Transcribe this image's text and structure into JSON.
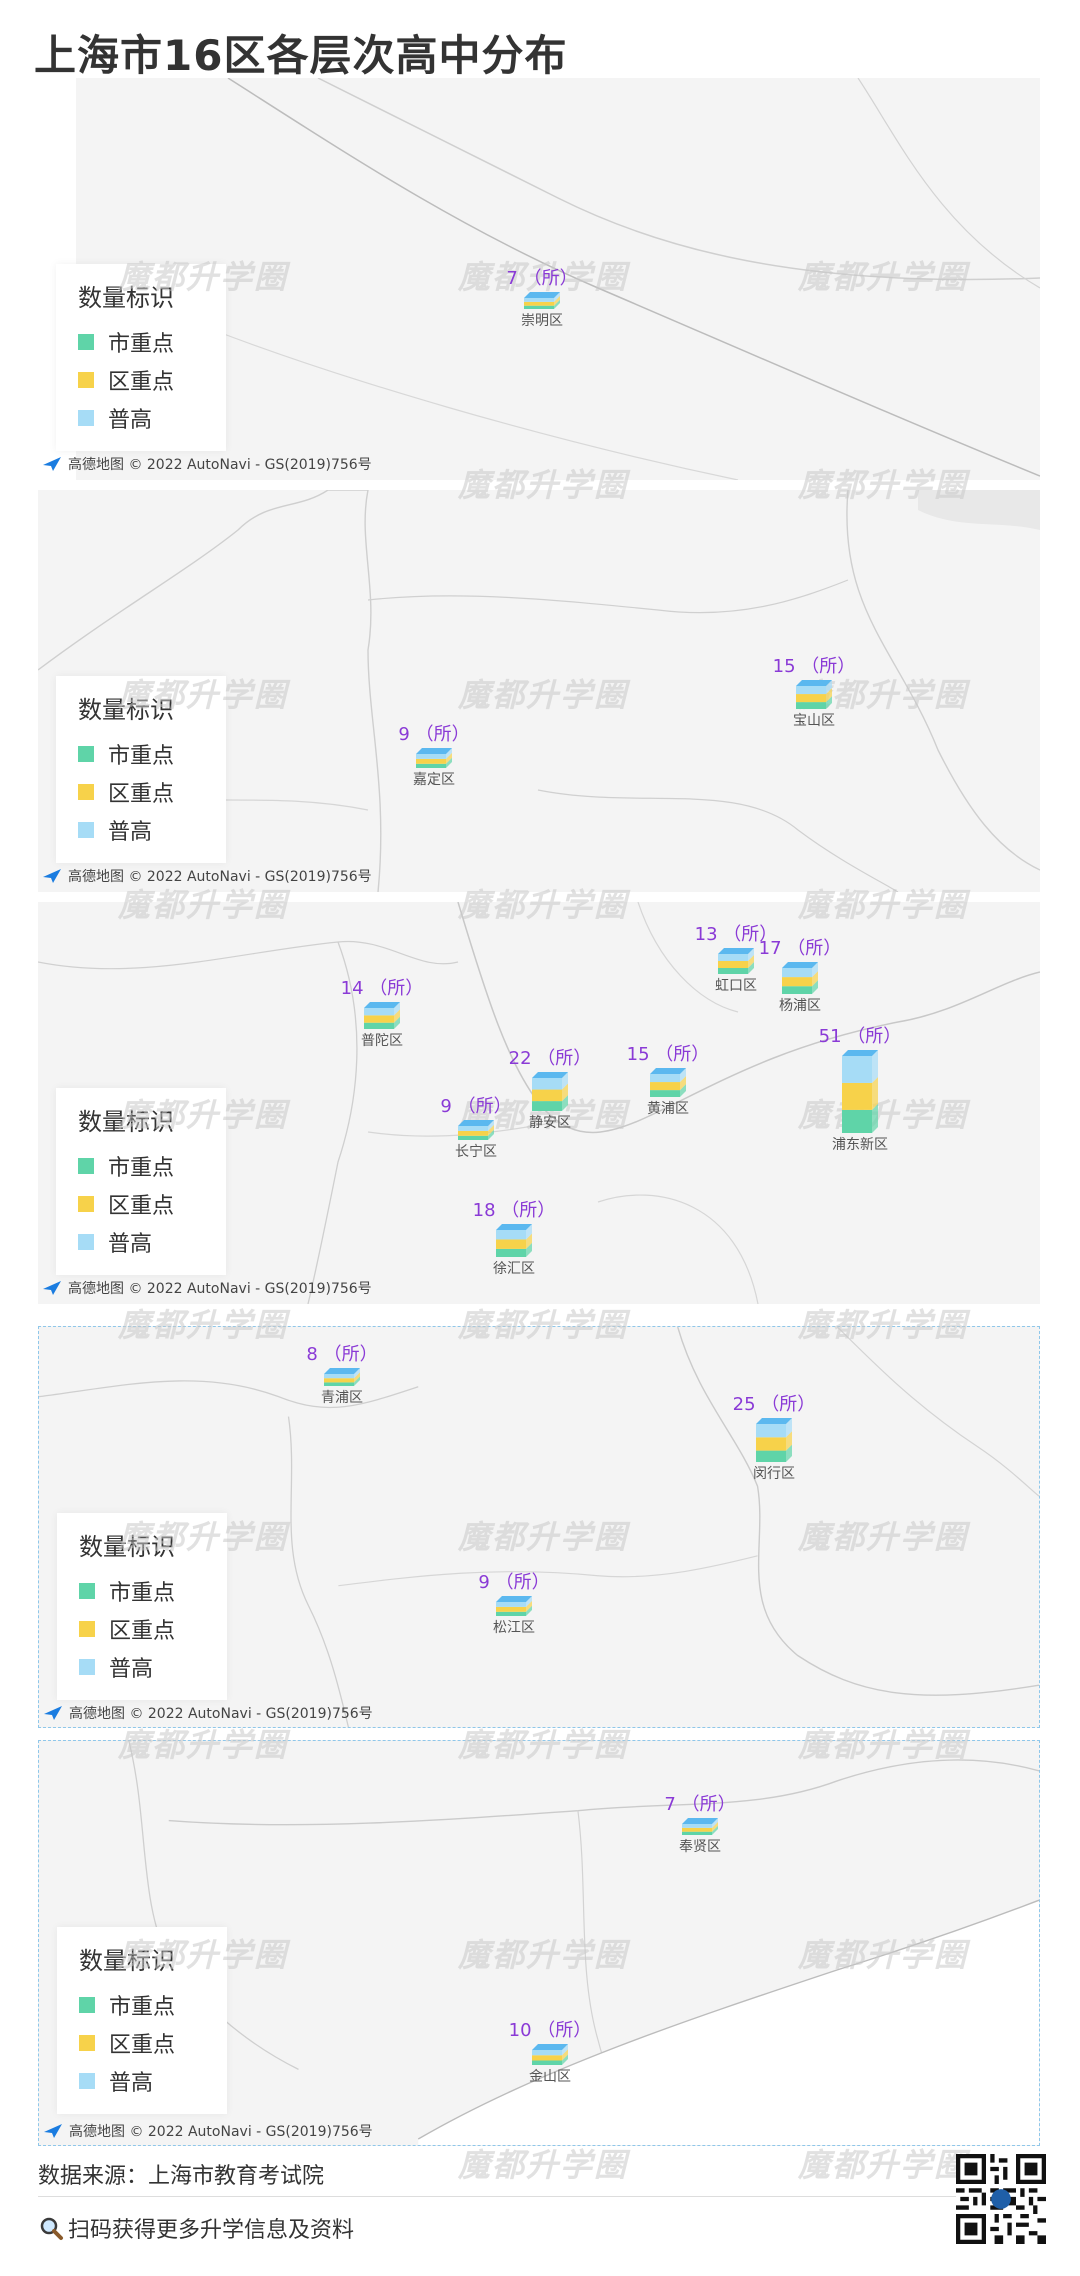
{
  "title": "上海市16区各层次高中分布",
  "legend": {
    "title": "数量标识",
    "items": [
      {
        "label": "市重点",
        "color": "#5fd4a8"
      },
      {
        "label": "区重点",
        "color": "#f7d24a"
      },
      {
        "label": "普高",
        "color": "#a6dcf6"
      }
    ]
  },
  "map_copyright": "© 2022 AutoNavi - GS(2019)756号",
  "map_brand": "高德地图",
  "watermark": "魔都升学圈",
  "count_unit": "（所）",
  "districts": [
    {
      "name": "崇明区",
      "count": 7
    },
    {
      "name": "宝山区",
      "count": 15
    },
    {
      "name": "嘉定区",
      "count": 9
    },
    {
      "name": "虹口区",
      "count": 13
    },
    {
      "name": "杨浦区",
      "count": 17
    },
    {
      "name": "普陀区",
      "count": 14
    },
    {
      "name": "静安区",
      "count": 22
    },
    {
      "name": "黄浦区",
      "count": 15
    },
    {
      "name": "浦东新区",
      "count": 51
    },
    {
      "name": "长宁区",
      "count": 9
    },
    {
      "name": "徐汇区",
      "count": 18
    },
    {
      "name": "青浦区",
      "count": 8
    },
    {
      "name": "闵行区",
      "count": 25
    },
    {
      "name": "松江区",
      "count": 9
    },
    {
      "name": "奉贤区",
      "count": 7
    },
    {
      "name": "金山区",
      "count": 10
    }
  ],
  "footer": {
    "source": "数据来源：上海市教育考试院",
    "scan": "扫码获得更多升学信息及资料",
    "scan_icon": "magnifier-icon"
  }
}
